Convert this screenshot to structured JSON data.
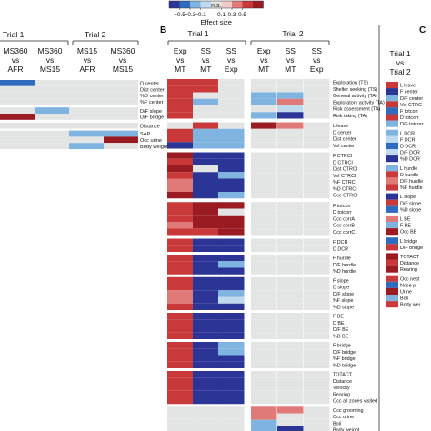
{
  "colors": {
    "dark_blue": "#2b3596",
    "mid_blue": "#2f6cc0",
    "light_blue": "#7fb4e0",
    "pale_blue": "#bfd9ef",
    "ns_gray": "#e3e4e4",
    "pale_red": "#f2c9c9",
    "light_red": "#e07a79",
    "mid_red": "#c9393a",
    "dark_red": "#9a1b22"
  },
  "legend": {
    "ns_label": "n.s.",
    "title": "Effect size",
    "ticks": [
      "−0.5",
      "−0.3",
      "−0.1",
      "0.1",
      "0.3",
      "0.5"
    ]
  },
  "panels": {
    "A": {
      "letter": "",
      "trials": [
        "Trial 1",
        "Trial 2"
      ],
      "columns": [
        {
          "top": "MS360",
          "mid": "vs",
          "bot": "AFR"
        },
        {
          "top": "MS360",
          "mid": "vs",
          "bot": "MS15"
        },
        {
          "top": "MS15",
          "mid": "vs",
          "bot": "AFR"
        },
        {
          "top": "MS360",
          "mid": "vs",
          "bot": "MS15"
        }
      ],
      "rows": [
        "D center",
        "Dist center",
        "%D center",
        "%F center",
        "D/F slope",
        "D/F bridge",
        "Distance",
        "SAP",
        "Occ urine",
        "Body weight"
      ]
    },
    "B": {
      "letter": "B",
      "trials": [
        "Trial 1",
        "Trial 2"
      ],
      "columns": [
        {
          "top": "Exp",
          "mid": "vs",
          "bot": "MT"
        },
        {
          "top": "SS",
          "mid": "vs",
          "bot": "MT"
        },
        {
          "top": "SS",
          "mid": "vs",
          "bot": "Exp"
        },
        {
          "top": "Exp",
          "mid": "vs",
          "bot": "MT"
        },
        {
          "top": "SS",
          "mid": "vs",
          "bot": "MT"
        },
        {
          "top": "SS",
          "mid": "vs",
          "bot": "Exp"
        }
      ],
      "rows": [
        "Exploration (TS)",
        "Shelter seeking (TS)",
        "General activity (TA)",
        "Exploratory activity (TA)",
        "Risk assessment (TA)",
        "Risk taking (TA)",
        "L leave",
        "D center",
        "Dist center",
        "Vel center",
        "F CTRCI",
        "D CTRCI",
        "Dist CTRCI",
        "Vel CTRCI",
        "%F CTRCI",
        "%D CTRCI",
        "Occ CTRCI",
        "F totcorr",
        "D totcorr",
        "Occ corrA",
        "Occ corrB",
        "Occ corrC",
        "F DCR",
        "D DCR",
        "F hurdle",
        "D/F hurdle",
        "%D hurdle",
        "F slope",
        "D slope",
        "D/F slope",
        "%F slope",
        "%D slope",
        "F BE",
        "D BE",
        "D/F BE",
        "%D BE",
        "F bridge",
        "D/F bridge",
        "%F bridge",
        "%D bridge",
        "TOTACT",
        "Distance",
        "Velocity",
        "Rearing",
        "Occ all zones visited",
        "Occ grooming",
        "Occ urine",
        "Boli",
        "Body weight"
      ]
    },
    "C": {
      "letter": "C",
      "header_top": "Trial 1",
      "header_mid": "vs",
      "header_bot": "Trial 2",
      "rows": [
        "L leave",
        "F center",
        "D/F center",
        "Vel CTRC",
        "F totcorr",
        "D totcorr",
        "D/F totcorr",
        "L DCR",
        "F DCR",
        "D DCR",
        "D/F DCR",
        "%D DCR",
        "L hurdle",
        "D hurdle",
        "D/F hurdle",
        "%F hurdle",
        "L slope",
        "D/F slope",
        "%D slope",
        "L BE",
        "F BE",
        "Occ BE",
        "L bridge",
        "D/F bridge",
        "TOTACT",
        "Distance",
        "Rearing",
        "Occ nest",
        "Nose p",
        "Urine",
        "Boli",
        "Body wei"
      ]
    }
  },
  "cell_codes": {
    "A": [
      "2000",
      "0000",
      "0000",
      "0000",
      "0300",
      "8000",
      "0000",
      "0033",
      "0008",
      "0030"
    ],
    "B": [
      "770000",
      "770000",
      "700330",
      "730360",
      "700040",
      "700310",
      "070860",
      "733000",
      "733000",
      "133000",
      "811000",
      "711000",
      "801000",
      "713000",
      "611000",
      "611000",
      "813000",
      "788000",
      "780000",
      "788000",
      "688000",
      "778000",
      "711000",
      "711000",
      "711000",
      "713000",
      "711000",
      "711000",
      "711000",
      "613000",
      "614000",
      "711000",
      "711000",
      "711000",
      "711000",
      "711000",
      "713000",
      "713000",
      "711000",
      "711000",
      "711000",
      "711000",
      "711000",
      "711000",
      "711000",
      "000660",
      "000600",
      "000300",
      "000310"
    ],
    "C": [
      "7",
      "1",
      "3",
      "7",
      "2",
      "7",
      "3",
      "3",
      "4",
      "2",
      "4",
      "1",
      "3",
      "7",
      "6",
      "7",
      "1",
      "7",
      "2",
      "6",
      "3",
      "8",
      "2",
      "7",
      "8",
      "7",
      "8",
      "7",
      "2",
      "8",
      "3",
      "7"
    ]
  }
}
